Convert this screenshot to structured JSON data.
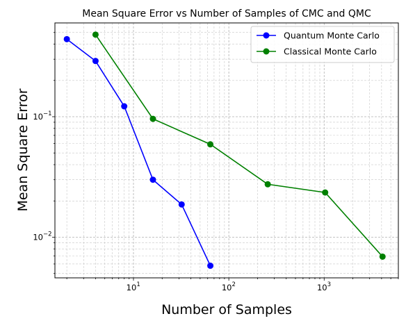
{
  "chart_data": {
    "type": "line",
    "title": "Mean Square Error vs Number of Samples of CMC and QMC",
    "xlabel": "Number of Samples",
    "ylabel": "Mean Square Error",
    "x_scale": "log",
    "y_scale": "log",
    "xlim": [
      1.5,
      6000
    ],
    "ylim": [
      0.0046,
      0.6
    ],
    "grid": true,
    "legend_position": "top-right",
    "x_ticks": [
      {
        "value": 10,
        "base": "10",
        "exp": "1"
      },
      {
        "value": 100,
        "base": "10",
        "exp": "2"
      },
      {
        "value": 1000,
        "base": "10",
        "exp": "3"
      }
    ],
    "y_ticks": [
      {
        "value": 0.01,
        "base": "10",
        "exp": "−2"
      },
      {
        "value": 0.1,
        "base": "10",
        "exp": "−1"
      }
    ],
    "series": [
      {
        "name": "Quantum Monte Carlo",
        "color": "#0000ff",
        "x": [
          2,
          4,
          8,
          16,
          32,
          64
        ],
        "y": [
          0.44,
          0.29,
          0.122,
          0.03,
          0.0187,
          0.0058
        ]
      },
      {
        "name": "Classical Monte Carlo",
        "color": "#008000",
        "x": [
          4,
          16,
          64,
          256,
          1024,
          4096
        ],
        "y": [
          0.48,
          0.096,
          0.059,
          0.0275,
          0.0235,
          0.0069
        ]
      }
    ]
  }
}
